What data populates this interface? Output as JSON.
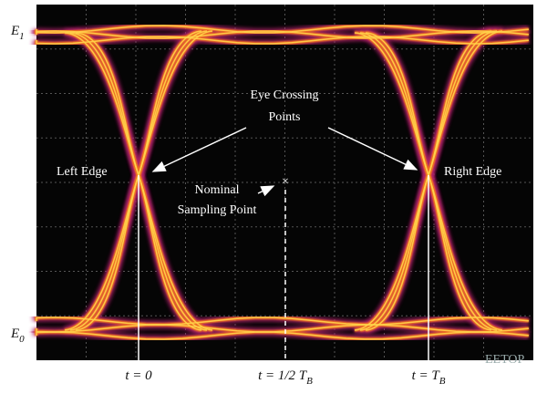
{
  "levels": {
    "high": {
      "main": "E",
      "sub": "1"
    },
    "low": {
      "main": "E",
      "sub": "0"
    }
  },
  "annotations": {
    "crossing": [
      "Eye Crossing",
      "Points"
    ],
    "left_edge": "Left Edge",
    "right_edge": "Right Edge",
    "sampling": [
      "Nominal",
      "Sampling Point"
    ]
  },
  "time_labels": {
    "start": "t = 0",
    "half": {
      "main": "t = 1/2 T",
      "sub": "B"
    },
    "end": {
      "main": "t = T",
      "sub": "B"
    }
  },
  "watermark": "EETOP"
}
